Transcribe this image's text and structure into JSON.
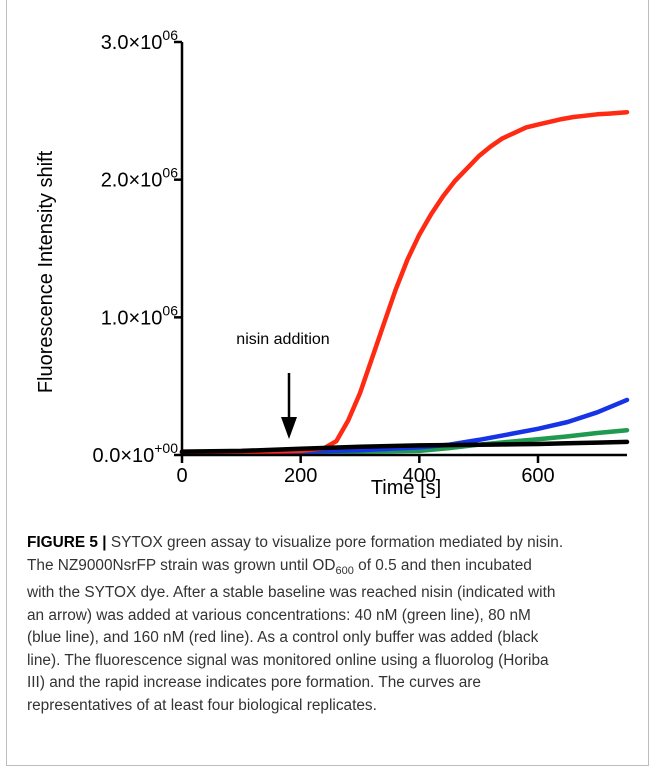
{
  "chart_data": {
    "type": "line",
    "xlabel": "Time [s]",
    "ylabel": "Fluorescence Intensity shift",
    "xlim": [
      0,
      750
    ],
    "ylim": [
      0,
      3000000
    ],
    "x_ticks": [
      0,
      200,
      400,
      600
    ],
    "x_tick_labels": [
      "0",
      "200",
      "400",
      "600"
    ],
    "y_ticks": [
      0,
      1000000,
      2000000,
      3000000
    ],
    "y_tick_labels": [
      {
        "base": "0.0×10",
        "exp": "+00"
      },
      {
        "base": "1.0×10",
        "exp": "06"
      },
      {
        "base": "2.0×10",
        "exp": "06"
      },
      {
        "base": "3.0×10",
        "exp": "06"
      }
    ],
    "grid": false,
    "annotation": {
      "text": "nisin addition",
      "x": 180
    },
    "series": [
      {
        "color": "#1f9a4e",
        "x": [
          0,
          100,
          200,
          300,
          400,
          450,
          500,
          550,
          600,
          650,
          700,
          750
        ],
        "y": [
          15000,
          15000,
          20000,
          25000,
          30000,
          50000,
          75000,
          95000,
          115000,
          135000,
          160000,
          180000
        ]
      },
      {
        "color": "#1733e8",
        "x": [
          0,
          100,
          200,
          300,
          350,
          400,
          450,
          500,
          550,
          600,
          650,
          700,
          750
        ],
        "y": [
          20000,
          20000,
          25000,
          35000,
          45000,
          55000,
          75000,
          110000,
          150000,
          190000,
          240000,
          310000,
          400000
        ]
      },
      {
        "color": "#ff2a12",
        "x": [
          0,
          100,
          200,
          240,
          260,
          280,
          300,
          320,
          340,
          360,
          380,
          400,
          420,
          440,
          460,
          480,
          500,
          520,
          540,
          560,
          580,
          600,
          620,
          640,
          660,
          680,
          700,
          720,
          750
        ],
        "y": [
          20000,
          20000,
          30000,
          50000,
          100000,
          250000,
          450000,
          700000,
          950000,
          1200000,
          1420000,
          1600000,
          1750000,
          1880000,
          1990000,
          2080000,
          2170000,
          2240000,
          2300000,
          2340000,
          2380000,
          2400000,
          2420000,
          2440000,
          2455000,
          2465000,
          2475000,
          2480000,
          2490000
        ]
      },
      {
        "color": "#000000",
        "x": [
          0,
          100,
          200,
          300,
          400,
          500,
          600,
          650,
          700,
          750
        ],
        "y": [
          25000,
          30000,
          45000,
          60000,
          70000,
          75000,
          80000,
          85000,
          90000,
          95000
        ]
      }
    ]
  },
  "caption": {
    "label": "FIGURE 5 |",
    "lines": [
      " SYTOX green assay to visualize pore formation mediated by nisin.",
      "The NZ9000NsrFP strain was grown until OD",
      "of 0.5 and then incubated",
      "with the SYTOX dye. After a stable baseline was reached nisin (indicated with",
      "an arrow) was added at various concentrations: 40 nM (green line), 80 nM",
      "(blue line), and 160 nM (red line). As a control only buffer was added (black",
      "line). The fluorescence signal was monitored online using a fluorolog (Horiba",
      "III) and the rapid increase indicates pore formation. The curves are",
      "representatives of at least four biological replicates."
    ],
    "od_subscript": "600"
  }
}
